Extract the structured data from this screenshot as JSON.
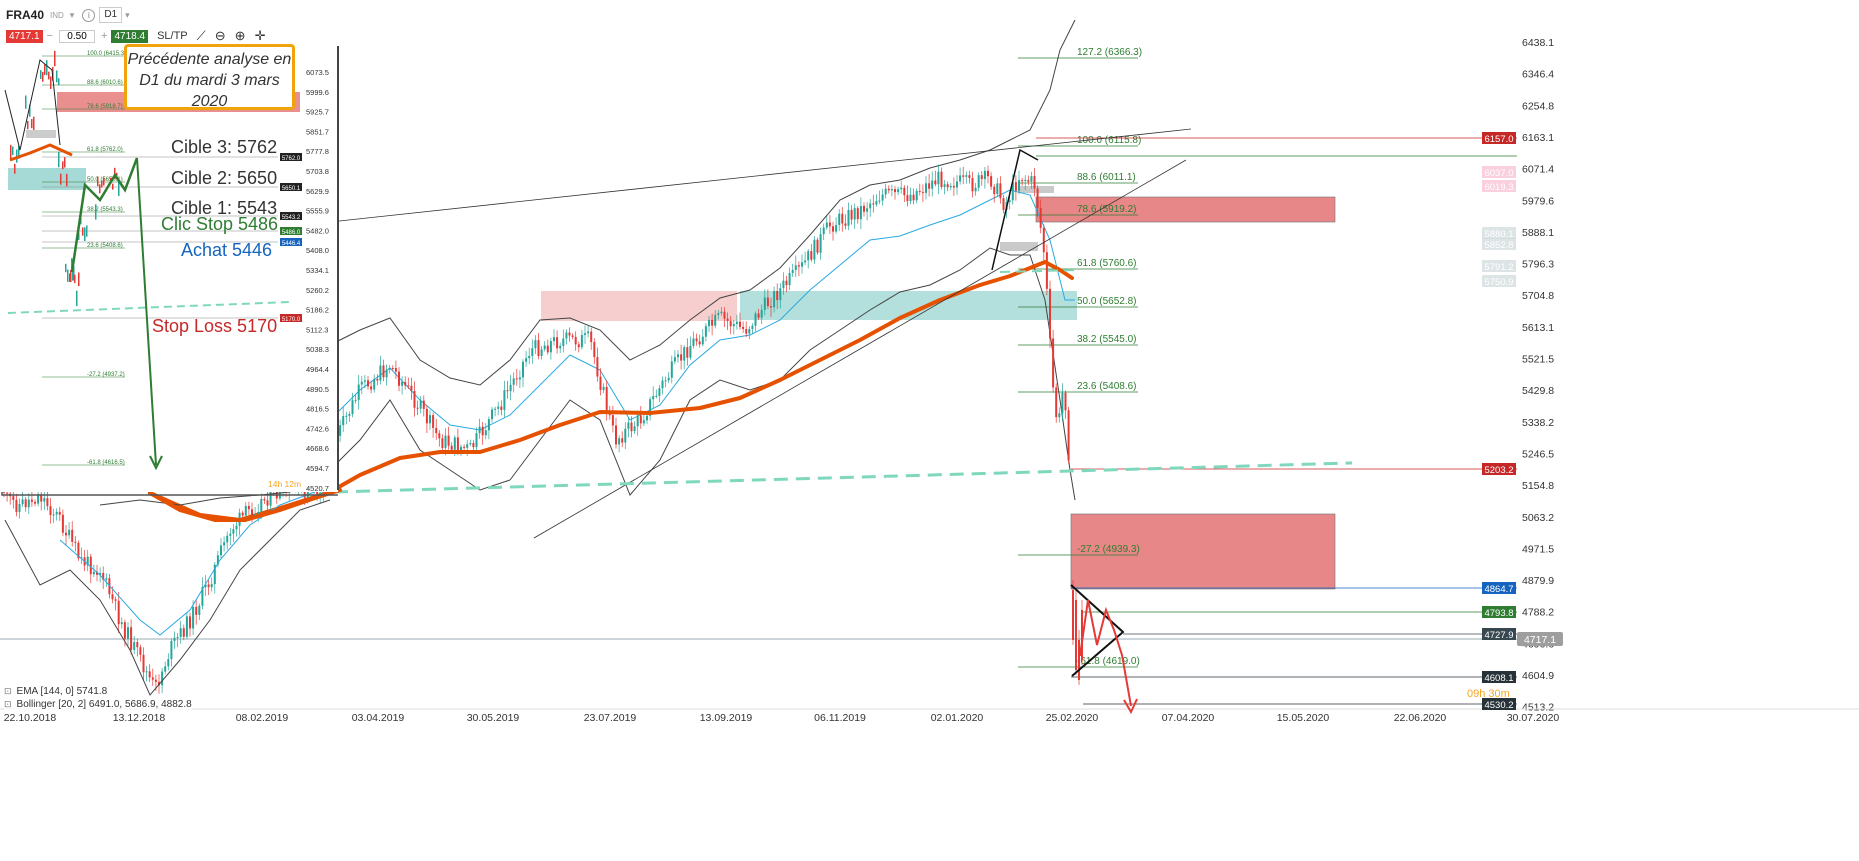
{
  "toolbar": {
    "symbol": "FRA40",
    "instrument_type": "IND",
    "timeframe": "D1",
    "bid": "4717.1",
    "quantity": "0.50",
    "ask": "4718.4",
    "sltp_label": "SL/TP",
    "icons": [
      "info-icon",
      "dropdown-icon",
      "line-tool-icon",
      "zoom-out-icon",
      "zoom-in-icon",
      "crosshair-icon"
    ]
  },
  "annotation": {
    "box_text_1": "Précédente analyse en",
    "box_text_2": "D1 du  mardi 3 mars",
    "box_text_3": "2020",
    "cible3": "Cible 3: 5762",
    "cible2": "Cible 2: 5650",
    "cible1": "Cible 1: 5543",
    "clic_stop": "Clic Stop 5486",
    "achat": "Achat 5446",
    "stop_loss": "Stop Loss 5170"
  },
  "inset_fib_labels": [
    "100.0 (6415.3)",
    "88.6 (6010.6)",
    "78.6 (5918.7)",
    "61.8 (5762.0)",
    "50.0 (5650.1)",
    "38.2 (5543.3)",
    "23.6 (5408.6)",
    "-27.2 (4937.2)",
    "-61.8 (4616.5)"
  ],
  "inset_tags": [
    "5762.0",
    "5650.1",
    "5543.2",
    "5486.0",
    "5446.4",
    "5170.0"
  ],
  "inset_yaxis": [
    "6073.5",
    "5999.6",
    "5925.7",
    "5851.7",
    "5777.8",
    "5703.8",
    "5629.9",
    "5555.9",
    "5482.0",
    "5408.0",
    "5334.1",
    "5260.2",
    "5186.2",
    "5112.3",
    "5038.3",
    "4964.4",
    "4890.5",
    "4816.5",
    "4742.6",
    "4668.6",
    "4594.7",
    "4520.7"
  ],
  "inset_timer": "14h 12m",
  "fib_labels": [
    "127.2 (6366.3)",
    "100.0 (6115.8)",
    "88.6 (6011.1)",
    "78.6 (5919.2)",
    "61.8 (5760.6)",
    "50.0 (5652.8)",
    "38.2 (5545.0)",
    "23.6 (5408.6)",
    "-27.2 (4939.3)",
    "-61.8 (4619.0)"
  ],
  "y_axis_labels": [
    "6438.1",
    "6346.4",
    "6254.8",
    "6163.1",
    "6071.4",
    "5979.6",
    "5888.1",
    "5796.3",
    "5704.8",
    "5613.1",
    "5521.5",
    "5429.8",
    "5338.2",
    "5246.5",
    "5154.8",
    "5063.2",
    "4971.5",
    "4879.9",
    "4788.2",
    "4696.6",
    "4604.9",
    "4513.2"
  ],
  "price_tags": [
    {
      "value": "6157.0",
      "color": "#c62828"
    },
    {
      "value": "5203.2",
      "color": "#c62828"
    },
    {
      "value": "4864.7",
      "color": "#1565c0"
    },
    {
      "value": "4793.8",
      "color": "#2e7d32"
    },
    {
      "value": "4727.9",
      "color": "#37474f"
    },
    {
      "value": "4717.1",
      "color": "#9e9e9e"
    },
    {
      "value": "4608.1",
      "color": "#263238"
    },
    {
      "value": "4530.2",
      "color": "#263238"
    }
  ],
  "faded_tags": [
    "6037.0",
    "6019.3",
    "5880.1",
    "5852.8",
    "5791.2",
    "5750.9"
  ],
  "timer": "09h 30m",
  "x_axis_labels": [
    "22.10.2018",
    "13.12.2018",
    "08.02.2019",
    "03.04.2019",
    "30.05.2019",
    "23.07.2019",
    "13.09.2019",
    "06.11.2019",
    "02.01.2020",
    "25.02.2020",
    "07.04.2020",
    "15.05.2020",
    "22.06.2020",
    "30.07.2020"
  ],
  "indicators": {
    "ema": "EMA [144, 0] 5741.8",
    "bollinger": "Bollinger [20, 2] 6491.0, 5686.9, 4882.8"
  },
  "colors": {
    "bull": "#26a69a",
    "bear": "#e53935",
    "ema": "#e65100",
    "bb_mid": "#29a9e1",
    "zone_red": "#e57373",
    "zone_green": "#80cbc4"
  }
}
